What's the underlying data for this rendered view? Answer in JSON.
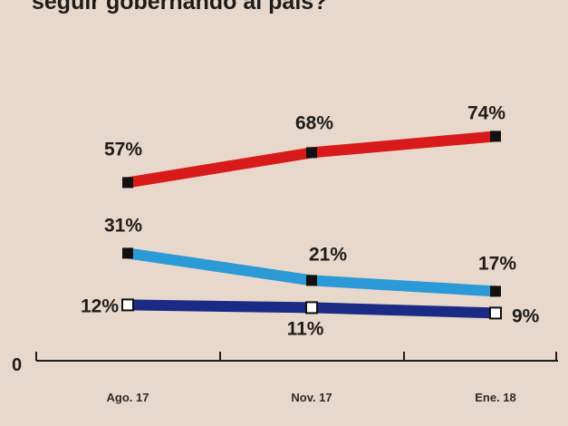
{
  "chart_data": {
    "type": "line",
    "title": "seguir gobernando al país?",
    "categories": [
      "Ago. 17",
      "Nov. 17",
      "Ene. 18"
    ],
    "y_axis_label": "0",
    "ylim": [
      0,
      80
    ],
    "grid": false,
    "legend": "none",
    "series": [
      {
        "color": "#d91a1a",
        "marker": "filled",
        "values": [
          57,
          68,
          74
        ],
        "labels": [
          "57%",
          "68%",
          "74%"
        ]
      },
      {
        "color": "#2b9ad6",
        "marker": "filled",
        "values": [
          31,
          21,
          17
        ],
        "labels": [
          "31%",
          "21%",
          "17%"
        ]
      },
      {
        "color": "#1a2a85",
        "marker": "hollow",
        "values": [
          12,
          11,
          9
        ],
        "labels": [
          "12%",
          "11%",
          "9%"
        ]
      }
    ]
  }
}
